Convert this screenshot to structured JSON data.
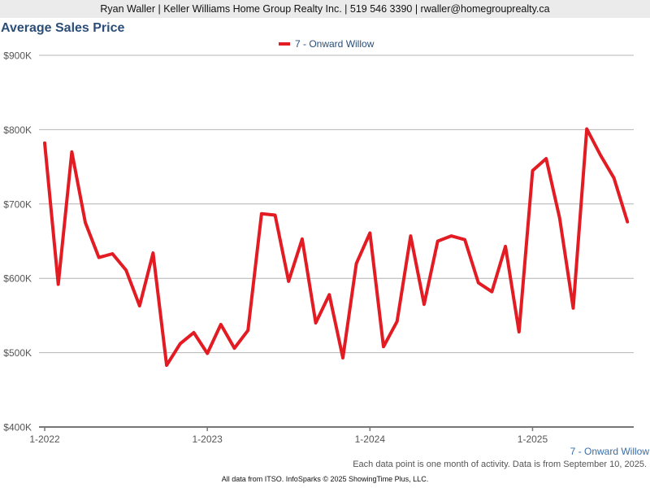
{
  "header": {
    "contact_line": "Ryan Waller | Keller Williams Home Group Realty Inc. | 519 546 3390 | rwaller@homegrouprealty.ca"
  },
  "footer": {
    "note": "Each data point is one month of activity. Data is from September 10, 2025.",
    "credit": "All data from ITSO. InfoSparks © 2025 ShowingTime Plus, LLC."
  },
  "colors": {
    "series": "#e31b23",
    "title": "#2a4e78",
    "series_label": "#3a6ea5",
    "grid": "#b4b4b4",
    "axis": "#555555"
  },
  "chart_data": {
    "type": "line",
    "title": "Average Sales Price",
    "xlabel": "",
    "ylabel": "",
    "ylim": [
      400000,
      900000
    ],
    "yticks": [
      400000,
      500000,
      600000,
      700000,
      800000,
      900000
    ],
    "ytick_labels": [
      "$400K",
      "$500K",
      "$600K",
      "$700K",
      "$800K",
      "$900K"
    ],
    "xticks": [
      "1-2022",
      "1-2023",
      "1-2024",
      "1-2025"
    ],
    "x_start": "1-2022",
    "legend": "top-center",
    "grid": true,
    "series": [
      {
        "name": "7 - Onward Willow",
        "end_label": "7 - Onward Willow",
        "values": [
          782000,
          592000,
          770000,
          675000,
          628000,
          633000,
          611000,
          563000,
          634000,
          483000,
          512000,
          527000,
          499000,
          538000,
          506000,
          530000,
          687000,
          685000,
          596000,
          653000,
          540000,
          578000,
          493000,
          620000,
          661000,
          508000,
          542000,
          657000,
          565000,
          650000,
          657000,
          652000,
          594000,
          582000,
          643000,
          528000,
          745000,
          761000,
          681000,
          560000,
          801000,
          766000,
          735000,
          676000
        ]
      }
    ]
  }
}
